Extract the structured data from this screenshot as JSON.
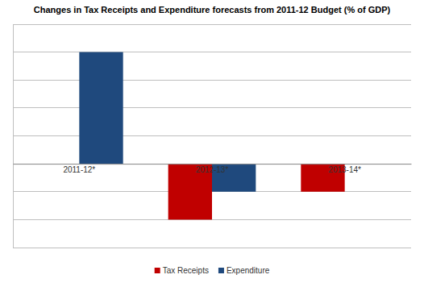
{
  "chart_data": {
    "type": "bar",
    "title": "Changes in Tax Receipts and Expenditure forecasts from 2011-12 Budget (% of GDP)",
    "categories": [
      "2011-12*",
      "2012-13*",
      "2013-14*"
    ],
    "series": [
      {
        "name": "Tax Receipts",
        "color": "#c00000",
        "values": [
          null,
          -0.2,
          -0.1
        ]
      },
      {
        "name": "Expenditure",
        "color": "#1f497d",
        "values": [
          0.4,
          -0.1,
          0
        ]
      }
    ],
    "ylim": [
      -0.3,
      0.5
    ],
    "yticks": [
      -0.3,
      -0.2,
      -0.1,
      0,
      0.1,
      0.2,
      0.3,
      0.4,
      0.5
    ],
    "grid": true,
    "legend": "bottom",
    "tick_labels": "x"
  }
}
